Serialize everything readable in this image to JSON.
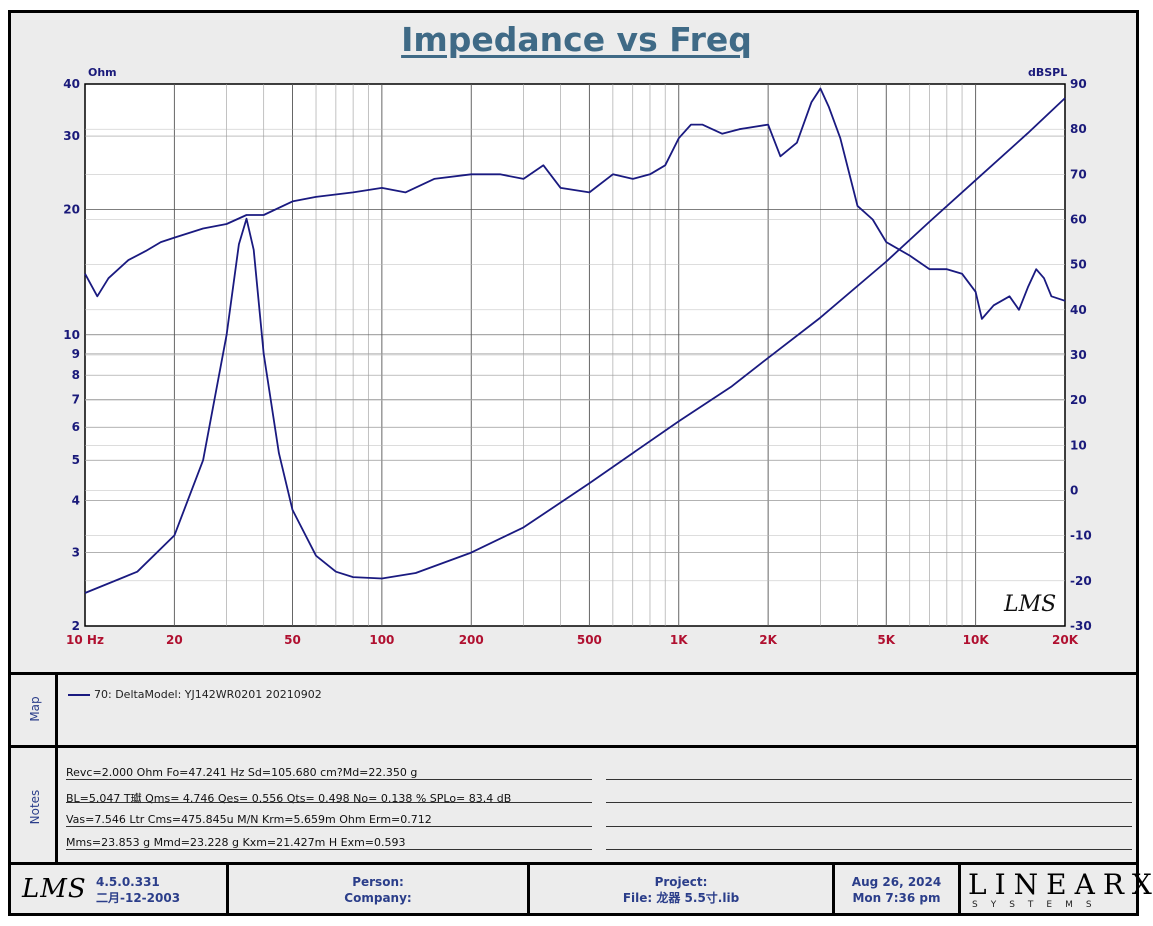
{
  "title": "Impedance vs Freq",
  "left_unit": "Ohm",
  "right_unit": "dBSPL",
  "chart_data": {
    "type": "line",
    "title": "Impedance vs Freq",
    "x_scale": "log",
    "xlim": [
      10,
      20000
    ],
    "x_ticks": [
      "10 Hz",
      "20",
      "50",
      "100",
      "200",
      "500",
      "1K",
      "2K",
      "5K",
      "10K",
      "20K"
    ],
    "y_left": {
      "label": "Ohm",
      "scale": "log",
      "lim": [
        2,
        40
      ],
      "ticks": [
        "2",
        "3",
        "4",
        "5",
        "6",
        "7",
        "8",
        "9",
        "10",
        "20",
        "30",
        "40"
      ]
    },
    "y_right": {
      "label": "dBSPL",
      "lim": [
        -30,
        90
      ],
      "ticks": [
        "-30",
        "-20",
        "-10",
        "0",
        "10",
        "20",
        "30",
        "40",
        "50",
        "60",
        "70",
        "80",
        "90"
      ]
    },
    "series": [
      {
        "name": "Impedance",
        "axis": "left",
        "color": "#1a1a80",
        "x": [
          10,
          15,
          20,
          25,
          30,
          33,
          35,
          37,
          40,
          45,
          50,
          60,
          70,
          80,
          100,
          130,
          200,
          300,
          500,
          700,
          1000,
          1500,
          2000,
          3000,
          5000,
          7000,
          10000,
          15000,
          20000
        ],
        "y": [
          2.4,
          2.7,
          3.3,
          5.0,
          10.0,
          16.5,
          19.0,
          16.0,
          9.0,
          5.2,
          3.8,
          2.95,
          2.7,
          2.62,
          2.6,
          2.68,
          3.0,
          3.45,
          4.4,
          5.2,
          6.2,
          7.5,
          8.8,
          11.0,
          15.0,
          18.7,
          23.5,
          30.5,
          37.0
        ]
      },
      {
        "name": "SPL",
        "axis": "right",
        "color": "#1a1a80",
        "x": [
          10,
          11,
          12,
          14,
          16,
          18,
          20,
          25,
          30,
          35,
          40,
          50,
          60,
          80,
          100,
          120,
          150,
          200,
          250,
          300,
          350,
          400,
          500,
          600,
          700,
          800,
          900,
          1000,
          1100,
          1200,
          1400,
          1600,
          2000,
          2200,
          2500,
          2800,
          3000,
          3200,
          3500,
          4000,
          4500,
          5000,
          6000,
          7000,
          8000,
          9000,
          10000,
          10500,
          11500,
          13000,
          14000,
          15000,
          16000,
          17000,
          18000,
          20000
        ],
        "y": [
          48,
          43,
          47,
          51,
          53,
          55,
          56,
          58,
          59,
          61,
          61,
          64,
          65,
          66,
          67,
          66,
          69,
          70,
          70,
          69,
          72,
          67,
          66,
          70,
          69,
          70,
          72,
          78,
          81,
          81,
          79,
          80,
          81,
          74,
          77,
          86,
          89,
          85,
          78,
          63,
          60,
          55,
          52,
          49,
          49,
          48,
          44,
          38,
          41,
          43,
          40,
          45,
          49,
          47,
          43,
          42
        ]
      }
    ]
  },
  "watermark": "LMS",
  "map": {
    "label": "Map",
    "legend": "70: DeltaModel: YJ142WR0201 20210902"
  },
  "notes": {
    "label": "Notes",
    "lines": [
      "Revc=2.000 Ohm  Fo=47.241 Hz  Sd=105.680 cm?Md=22.350 g",
      "BL=5.047 T瓛  Qms= 4.746  Qes= 0.556  Qts= 0.498  No= 0.138 %  SPLo= 83.4 dB",
      "Vas=7.546 Ltr  Cms=475.845u M/N  Krm=5.659m Ohm  Erm=0.712",
      "Mms=23.853 g  Mmd=23.228 g  Kxm=21.427m H  Exm=0.593"
    ]
  },
  "footer": {
    "logo": "LMS",
    "version": "4.5.0.331",
    "build_date": "二月-12-2003",
    "person_label": "Person:",
    "company_label": "Company:",
    "project_label": "Project:",
    "file_label": "File: 龙器 5.5寸.lib",
    "date": "Aug 26, 2024",
    "time": "Mon  7:36 pm",
    "brand": "LINEARX",
    "brand_sub": "SYSTEMS"
  }
}
